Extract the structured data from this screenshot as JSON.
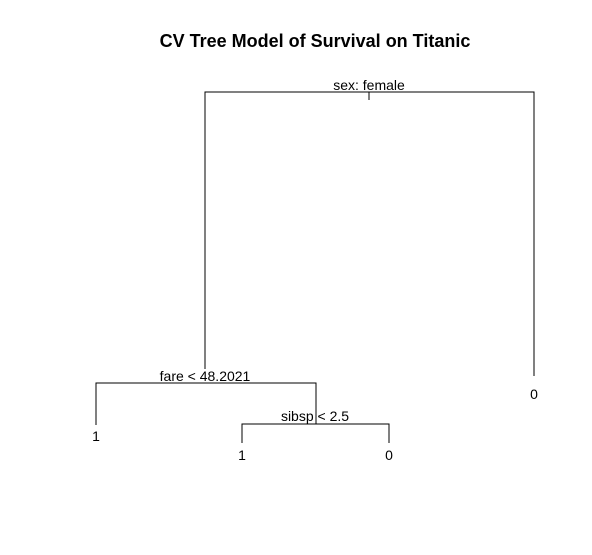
{
  "title": "CV Tree Model of Survival on Titanic",
  "tree": {
    "root": {
      "split": "sex: female",
      "left": {
        "split": "fare < 48.2021",
        "left": {
          "leaf": "1"
        },
        "right": {
          "split": "sibsp < 2.5",
          "left": {
            "leaf": "1"
          },
          "right": {
            "leaf": "0"
          }
        }
      },
      "right": {
        "leaf": "0"
      }
    }
  },
  "labels": {
    "root_split": "sex: female",
    "fare_split": "fare < 48.2021",
    "sibsp_split": "sibsp < 2.5",
    "leaf_fare_left": "1",
    "leaf_sibsp_left": "1",
    "leaf_sibsp_right": "0",
    "leaf_root_right": "0"
  }
}
